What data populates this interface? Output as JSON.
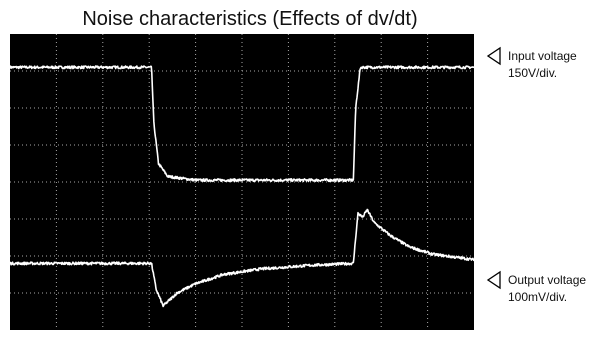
{
  "title": "Noise characteristics (Effects of dv/dt)",
  "markers": [
    {
      "label": "Input voltage",
      "scale": "150V/div."
    },
    {
      "label": "Output voltage",
      "scale": "100mV/div."
    }
  ],
  "colors": {
    "screen": "#000000",
    "trace": "#ffffff",
    "grid": "#a8a8a8"
  },
  "chart_data": {
    "type": "line",
    "title": "Noise characteristics (Effects of dv/dt)",
    "grid": true,
    "divisions": {
      "x": 10,
      "y": 8
    },
    "ylim": [
      -4,
      4
    ],
    "xlim": [
      0,
      10
    ],
    "series": [
      {
        "name": "Input voltage",
        "scale": "150V/div.",
        "points": [
          [
            0,
            3.1
          ],
          [
            3.05,
            3.1
          ],
          [
            3.1,
            1.6
          ],
          [
            3.2,
            0.5
          ],
          [
            3.4,
            0.15
          ],
          [
            4.0,
            0.05
          ],
          [
            7.4,
            0.05
          ],
          [
            7.45,
            2.0
          ],
          [
            7.55,
            3.1
          ],
          [
            10,
            3.1
          ]
        ]
      },
      {
        "name": "Output voltage",
        "scale": "100mV/div.",
        "points": [
          [
            0,
            -2.2
          ],
          [
            3.05,
            -2.2
          ],
          [
            3.15,
            -2.9
          ],
          [
            3.3,
            -3.35
          ],
          [
            3.6,
            -3.0
          ],
          [
            4.0,
            -2.75
          ],
          [
            4.6,
            -2.5
          ],
          [
            5.4,
            -2.35
          ],
          [
            6.5,
            -2.25
          ],
          [
            7.4,
            -2.2
          ],
          [
            7.45,
            -1.5
          ],
          [
            7.5,
            -0.85
          ],
          [
            7.6,
            -0.95
          ],
          [
            7.7,
            -0.75
          ],
          [
            7.85,
            -1.1
          ],
          [
            8.2,
            -1.45
          ],
          [
            8.6,
            -1.75
          ],
          [
            9.1,
            -1.95
          ],
          [
            10,
            -2.1
          ]
        ]
      }
    ]
  }
}
